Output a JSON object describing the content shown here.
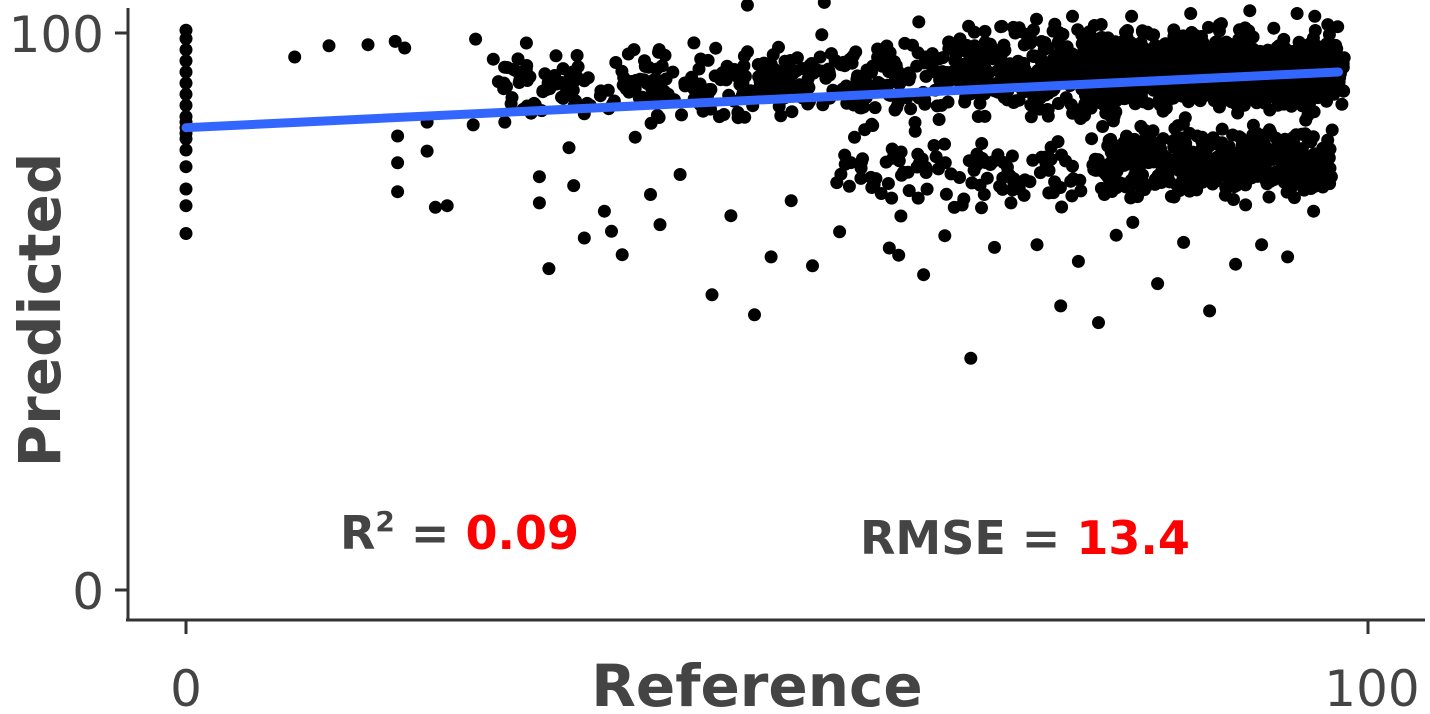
{
  "chart_data": {
    "type": "scatter",
    "xlabel": "Reference",
    "ylabel": "Predicted",
    "xlim": [
      0,
      100
    ],
    "ylim": [
      0,
      100
    ],
    "x_ticks": [
      "0",
      "100"
    ],
    "y_ticks": [
      "0",
      "100"
    ],
    "grid": false,
    "point_color": "#000000",
    "fit_line": {
      "color": "#3366ff",
      "x": [
        0,
        97.5
      ],
      "y": [
        83.0,
        93.0
      ]
    },
    "annotations": {
      "r2_label": "R",
      "r2_sup": "2",
      "r2_eq": " = ",
      "r2_value": "0.09",
      "rmse_label": "RMSE = ",
      "rmse_value": "13.4",
      "value_color": "#ff0000"
    },
    "points_anchor": [
      [
        0,
        100.5
      ],
      [
        0,
        99
      ],
      [
        0,
        97
      ],
      [
        0,
        95
      ],
      [
        0,
        93
      ],
      [
        0,
        91
      ],
      [
        0,
        89
      ],
      [
        0,
        87
      ],
      [
        0,
        85
      ],
      [
        0,
        84
      ],
      [
        0,
        83
      ],
      [
        0,
        82
      ],
      [
        0,
        81
      ],
      [
        0,
        79
      ],
      [
        0,
        76
      ],
      [
        0,
        72
      ],
      [
        0,
        69
      ],
      [
        0,
        64
      ],
      [
        9.2,
        95.7
      ],
      [
        12.1,
        97.7
      ],
      [
        15.4,
        97.9
      ],
      [
        17.7,
        98.5
      ],
      [
        17.9,
        81.5
      ],
      [
        17.9,
        76.7
      ],
      [
        17.9,
        71.5
      ],
      [
        18.5,
        97.3
      ],
      [
        20.4,
        84.0
      ],
      [
        20.4,
        78.8
      ],
      [
        21.1,
        68.7
      ],
      [
        22.1,
        69.0
      ],
      [
        24.5,
        98.9
      ],
      [
        24.3,
        83.5
      ],
      [
        26.0,
        95.3
      ],
      [
        26.9,
        91.0
      ],
      [
        27.5,
        87.3
      ],
      [
        28.8,
        98.2
      ],
      [
        29.2,
        85.6
      ],
      [
        29.9,
        74.2
      ],
      [
        29.9,
        69.5
      ],
      [
        30.7,
        57.7
      ],
      [
        31.3,
        95.9
      ],
      [
        32.4,
        79.4
      ],
      [
        32.8,
        72.6
      ],
      [
        33.7,
        63.2
      ],
      [
        34.2,
        87.0
      ],
      [
        35.4,
        68.0
      ],
      [
        36.0,
        64.4
      ],
      [
        36.9,
        60.2
      ],
      [
        38.0,
        81.3
      ],
      [
        39.3,
        71.0
      ],
      [
        40.1,
        65.6
      ],
      [
        41.8,
        74.6
      ],
      [
        44.5,
        53.0
      ],
      [
        46.1,
        67.2
      ],
      [
        48.1,
        49.4
      ],
      [
        49.5,
        59.8
      ],
      [
        51.2,
        69.9
      ],
      [
        53.0,
        58.2
      ],
      [
        55.3,
        64.3
      ],
      [
        57.1,
        73.9
      ],
      [
        59.5,
        61.4
      ],
      [
        60.3,
        60.1
      ],
      [
        62.4,
        56.6
      ],
      [
        64.2,
        63.6
      ],
      [
        65.8,
        70.2
      ],
      [
        66.4,
        41.6
      ],
      [
        68.4,
        61.5
      ],
      [
        69.8,
        69.5
      ],
      [
        72.0,
        62.0
      ],
      [
        74.0,
        51.0
      ],
      [
        75.5,
        59.0
      ],
      [
        77.2,
        48.0
      ],
      [
        78.7,
        63.7
      ],
      [
        80.1,
        66.0
      ],
      [
        82.2,
        55.0
      ],
      [
        84.4,
        62.4
      ],
      [
        86.6,
        50.1
      ],
      [
        88.8,
        58.5
      ],
      [
        91.0,
        62.0
      ],
      [
        93.2,
        59.8
      ],
      [
        95.4,
        68.0
      ],
      [
        96.7,
        79.0
      ],
      [
        97.1,
        89.0
      ],
      [
        97.6,
        92.0
      ],
      [
        97.9,
        94.5
      ],
      [
        96.6,
        101.5
      ],
      [
        95.5,
        103.0
      ],
      [
        94.0,
        103.5
      ],
      [
        90.0,
        104.0
      ],
      [
        85.0,
        103.5
      ],
      [
        80.0,
        103.0
      ],
      [
        75.0,
        103.0
      ],
      [
        70.0,
        101.0
      ],
      [
        62.0,
        102.0
      ],
      [
        54.0,
        105.5
      ],
      [
        47.5,
        105.0
      ]
    ],
    "cloud_regions": [
      {
        "x_range": [
          26,
          36
        ],
        "y_center": 90,
        "y_spread": 8,
        "count": 60
      },
      {
        "x_range": [
          36,
          50
        ],
        "y_center": 91,
        "y_spread": 9,
        "count": 110
      },
      {
        "x_range": [
          50,
          65
        ],
        "y_center": 92,
        "y_spread": 10,
        "count": 170
      },
      {
        "x_range": [
          65,
          80
        ],
        "y_center": 93,
        "y_spread": 11,
        "count": 320
      },
      {
        "x_range": [
          76,
          98
        ],
        "y_center": 93,
        "y_spread": 10,
        "count": 900
      },
      {
        "x_range": [
          78,
          97
        ],
        "y_center": 77,
        "y_spread": 9,
        "count": 360
      },
      {
        "x_range": [
          55,
          80
        ],
        "y_center": 75,
        "y_spread": 10,
        "count": 120
      }
    ],
    "cloud_y_clip": [
      55,
      104
    ]
  }
}
